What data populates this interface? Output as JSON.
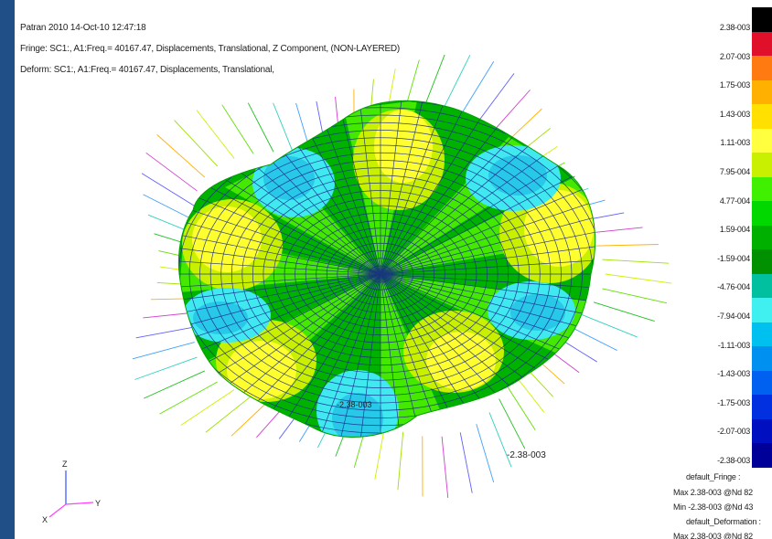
{
  "header": {
    "line1": "Patran 2010 14-Oct-10 12:47:18",
    "line2": "Fringe: SC1:, A1:Freq.= 40167.47, Displacements, Translational, Z Component, (NON-LAYERED)",
    "line3": "Deform: SC1:, A1:Freq.= 40167.47, Displacements, Translational,"
  },
  "legend": {
    "colors": [
      "#000000",
      "#e0102a",
      "#ff7a10",
      "#ffb000",
      "#ffe000",
      "#ffff40",
      "#c8f000",
      "#40f000",
      "#00d800",
      "#00b000",
      "#009000",
      "#00c0a0",
      "#40f0f0",
      "#00c0f0",
      "#0090f0",
      "#0060f0",
      "#0030e0",
      "#0010c0",
      "#000098"
    ],
    "ticks": [
      "2.38-003",
      "2.07-003",
      "1.75-003",
      "1.43-003",
      "1.11-003",
      "7.95-004",
      "4.77-004",
      "1.59-004",
      "-1.59-004",
      "-4.76-004",
      "-7.94-004",
      "-1.11-003",
      "-1.43-003",
      "-1.75-003",
      "-2.07-003",
      "-2.38-003"
    ]
  },
  "info": {
    "fringe_title": "default_Fringe :",
    "fringe_max": "Max 2.38-003 @Nd 82",
    "fringe_min": "Min -2.38-003 @Nd 43",
    "deform_title": "default_Deformation :",
    "deform_max": "Max 2.38-003 @Nd 82"
  },
  "annotations": {
    "inner_label": "-2.38-003",
    "outer_label": "-2.38-003"
  },
  "triad": {
    "z": "Z",
    "x": "X",
    "y": "Y"
  }
}
